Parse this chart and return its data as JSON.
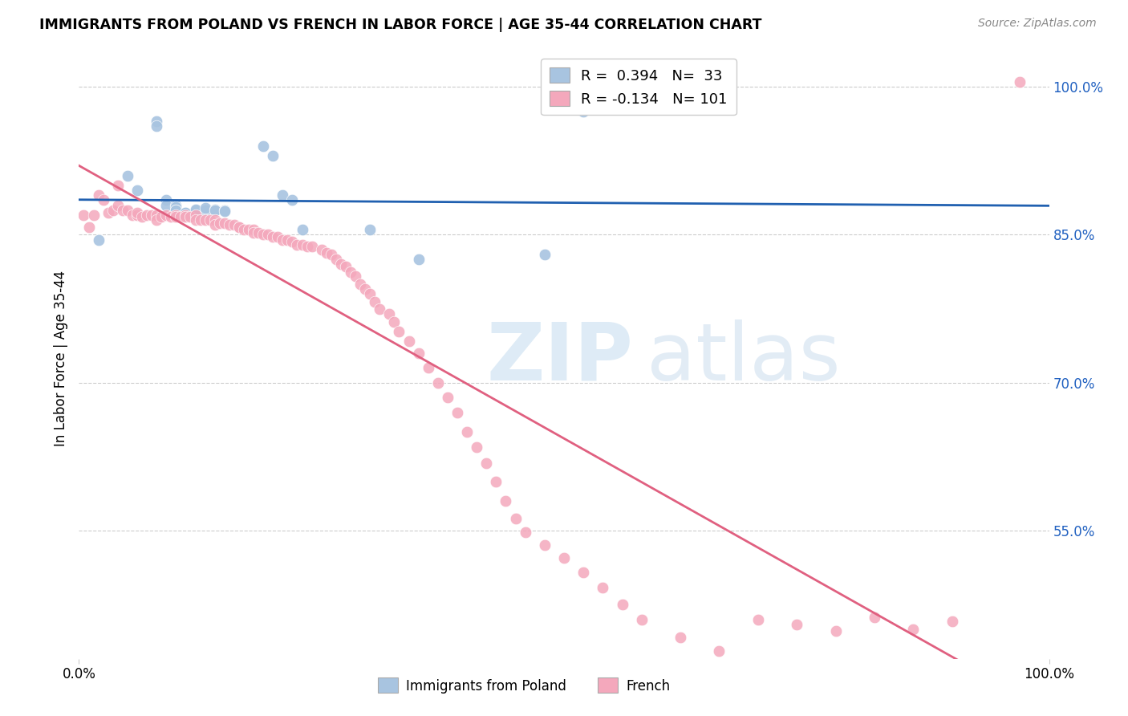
{
  "title": "IMMIGRANTS FROM POLAND VS FRENCH IN LABOR FORCE | AGE 35-44 CORRELATION CHART",
  "source": "Source: ZipAtlas.com",
  "ylabel": "In Labor Force | Age 35-44",
  "xlim": [
    0.0,
    1.0
  ],
  "ylim": [
    0.42,
    1.03
  ],
  "yticks": [
    0.55,
    0.7,
    0.85,
    1.0
  ],
  "ytick_labels": [
    "55.0%",
    "70.0%",
    "85.0%",
    "100.0%"
  ],
  "xtick_labels": [
    "0.0%",
    "100.0%"
  ],
  "poland_color": "#a8c4e0",
  "french_color": "#f4a8bc",
  "trendline_poland_color": "#2060b0",
  "trendline_french_color": "#e06080",
  "background_color": "#ffffff",
  "poland_scatter_x": [
    0.02,
    0.05,
    0.06,
    0.08,
    0.08,
    0.09,
    0.09,
    0.1,
    0.1,
    0.1,
    0.1,
    0.11,
    0.11,
    0.11,
    0.12,
    0.12,
    0.12,
    0.12,
    0.13,
    0.13,
    0.14,
    0.14,
    0.15,
    0.15,
    0.19,
    0.2,
    0.21,
    0.22,
    0.23,
    0.3,
    0.35,
    0.48,
    0.52
  ],
  "poland_scatter_y": [
    0.845,
    0.91,
    0.895,
    0.965,
    0.96,
    0.885,
    0.88,
    0.88,
    0.878,
    0.875,
    0.875,
    0.872,
    0.87,
    0.872,
    0.872,
    0.87,
    0.875,
    0.876,
    0.875,
    0.877,
    0.876,
    0.875,
    0.875,
    0.874,
    0.94,
    0.93,
    0.89,
    0.885,
    0.855,
    0.855,
    0.825,
    0.83,
    0.975
  ],
  "french_scatter_x": [
    0.005,
    0.01,
    0.015,
    0.02,
    0.025,
    0.03,
    0.035,
    0.04,
    0.04,
    0.045,
    0.05,
    0.055,
    0.06,
    0.06,
    0.065,
    0.07,
    0.075,
    0.08,
    0.08,
    0.085,
    0.09,
    0.095,
    0.1,
    0.1,
    0.105,
    0.11,
    0.11,
    0.115,
    0.12,
    0.12,
    0.125,
    0.13,
    0.135,
    0.14,
    0.14,
    0.145,
    0.15,
    0.155,
    0.16,
    0.165,
    0.165,
    0.17,
    0.175,
    0.18,
    0.18,
    0.185,
    0.19,
    0.195,
    0.2,
    0.205,
    0.21,
    0.215,
    0.22,
    0.225,
    0.23,
    0.235,
    0.24,
    0.25,
    0.255,
    0.26,
    0.265,
    0.27,
    0.275,
    0.28,
    0.285,
    0.29,
    0.295,
    0.3,
    0.305,
    0.31,
    0.32,
    0.325,
    0.33,
    0.34,
    0.35,
    0.36,
    0.37,
    0.38,
    0.39,
    0.4,
    0.41,
    0.42,
    0.43,
    0.44,
    0.45,
    0.46,
    0.48,
    0.5,
    0.52,
    0.54,
    0.56,
    0.58,
    0.62,
    0.66,
    0.7,
    0.74,
    0.78,
    0.82,
    0.86,
    0.9,
    0.97
  ],
  "french_scatter_y": [
    0.87,
    0.858,
    0.87,
    0.89,
    0.885,
    0.872,
    0.875,
    0.9,
    0.88,
    0.875,
    0.875,
    0.87,
    0.87,
    0.872,
    0.868,
    0.87,
    0.87,
    0.87,
    0.865,
    0.868,
    0.87,
    0.868,
    0.87,
    0.868,
    0.868,
    0.87,
    0.868,
    0.868,
    0.87,
    0.865,
    0.865,
    0.865,
    0.865,
    0.865,
    0.86,
    0.862,
    0.862,
    0.86,
    0.86,
    0.858,
    0.858,
    0.855,
    0.855,
    0.855,
    0.852,
    0.852,
    0.85,
    0.85,
    0.848,
    0.848,
    0.845,
    0.845,
    0.843,
    0.84,
    0.84,
    0.838,
    0.838,
    0.835,
    0.832,
    0.83,
    0.825,
    0.82,
    0.818,
    0.812,
    0.808,
    0.8,
    0.795,
    0.79,
    0.782,
    0.775,
    0.77,
    0.762,
    0.752,
    0.742,
    0.73,
    0.715,
    0.7,
    0.685,
    0.67,
    0.65,
    0.635,
    0.618,
    0.6,
    0.58,
    0.562,
    0.548,
    0.535,
    0.522,
    0.508,
    0.492,
    0.475,
    0.46,
    0.442,
    0.428,
    0.46,
    0.455,
    0.448,
    0.462,
    0.45,
    0.458,
    1.005
  ]
}
